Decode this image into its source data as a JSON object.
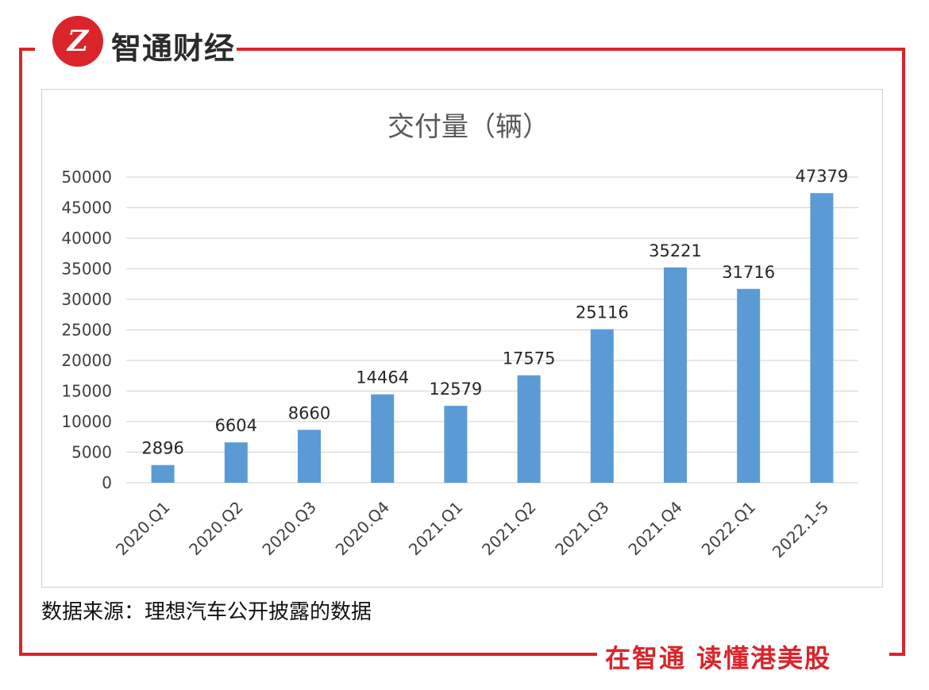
{
  "header": {
    "logo_text": "Z",
    "brand": "智通财经"
  },
  "footer": {
    "slogan": "在智通 读懂港美股"
  },
  "source_note": "数据来源：理想汽车公开披露的数据",
  "colors": {
    "accent": "#d9252b",
    "bar": "#5b9bd5",
    "grid": "#d9d9d9",
    "text": "#404040"
  },
  "chart_data": {
    "type": "bar",
    "title": "交付量（辆）",
    "categories": [
      "2020.Q1",
      "2020.Q2",
      "2020.Q3",
      "2020.Q4",
      "2021.Q1",
      "2021.Q2",
      "2021.Q3",
      "2021.Q4",
      "2022.Q1",
      "2022.1-5"
    ],
    "values": [
      2896,
      6604,
      8660,
      14464,
      12579,
      17575,
      25116,
      35221,
      31716,
      47379
    ],
    "yticks": [
      0,
      5000,
      10000,
      15000,
      20000,
      25000,
      30000,
      35000,
      40000,
      45000,
      50000
    ],
    "ylim": [
      0,
      50000
    ],
    "xlabel": "",
    "ylabel": "",
    "grid": true,
    "legend": "none"
  }
}
